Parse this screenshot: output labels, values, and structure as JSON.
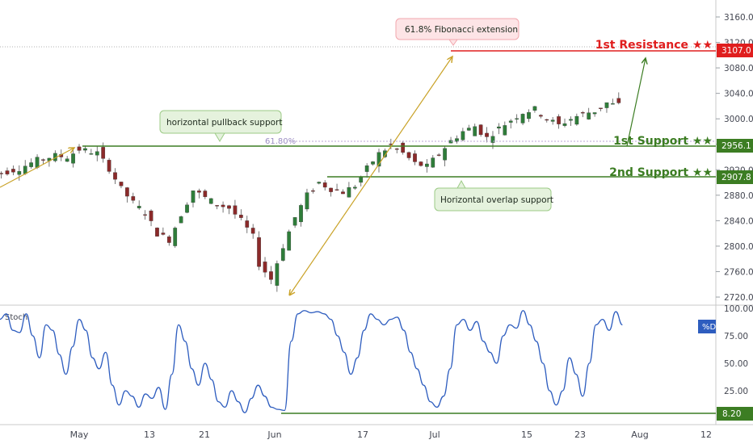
{
  "chart_data": [
    {
      "type": "candlestick",
      "price_axis": {
        "ticks": [
          "3160.0",
          "3120.0",
          "3080.0",
          "3040.0",
          "3000.0",
          "2960.0",
          "2920.0",
          "2880.0",
          "2840.0",
          "2800.0",
          "2760.0",
          "2720.0"
        ],
        "range": [
          2710,
          3190
        ]
      },
      "date_axis": {
        "ticks": [
          "May",
          "13",
          "21",
          "Jun",
          "17",
          "Jul",
          "15",
          "23",
          "Aug",
          "12"
        ]
      },
      "levels": [
        {
          "label": "1st Resistance ★★",
          "price": 3107.0,
          "tag": "3107.0",
          "color": "#e01e1e"
        },
        {
          "label": "1st Support ★★",
          "price": 2956.1,
          "tag": "2956.1",
          "color": "#3c7d23"
        },
        {
          "label": "2nd Support ★★",
          "price": 2907.8,
          "tag": "2907.8",
          "color": "#3c7d23"
        }
      ],
      "callouts": [
        {
          "text": "61.8% Fibonacci extension"
        },
        {
          "text": "horizontal pullback support"
        },
        {
          "text": "Horizontal overlap support"
        }
      ],
      "fib_label": "61.80%",
      "series": [
        {
          "name": "price",
          "points": [
            [
              -15,
              2908
            ],
            [
              -12,
              2915
            ],
            [
              -9,
              2922
            ],
            [
              -6,
              2935
            ],
            [
              -3,
              2942
            ],
            [
              -1,
              2940
            ],
            [
              1,
              2952
            ],
            [
              4,
              2946
            ],
            [
              6,
              2922
            ],
            [
              8,
              2890
            ],
            [
              10,
              2868
            ],
            [
              12,
              2852
            ],
            [
              14,
              2820
            ],
            [
              16,
              2810
            ],
            [
              18,
              2850
            ],
            [
              20,
              2888
            ],
            [
              22,
              2876
            ],
            [
              24,
              2866
            ],
            [
              26,
              2860
            ],
            [
              28,
              2840
            ],
            [
              30,
              2815
            ],
            [
              31,
              2772
            ],
            [
              33,
              2748
            ],
            [
              35,
              2800
            ],
            [
              37,
              2845
            ],
            [
              39,
              2880
            ],
            [
              41,
              2900
            ],
            [
              43,
              2890
            ],
            [
              45,
              2885
            ],
            [
              47,
              2895
            ],
            [
              49,
              2922
            ],
            [
              51,
              2945
            ],
            [
              53,
              2958
            ],
            [
              55,
              2946
            ],
            [
              57,
              2930
            ],
            [
              59,
              2925
            ],
            [
              61,
              2945
            ],
            [
              63,
              2965
            ],
            [
              65,
              2980
            ],
            [
              67,
              2988
            ],
            [
              69,
              2970
            ],
            [
              71,
              2985
            ],
            [
              73,
              2998
            ],
            [
              75,
              3010
            ],
            [
              77,
              3015
            ],
            [
              79,
              3000
            ],
            [
              81,
              2990
            ],
            [
              83,
              3000
            ],
            [
              85,
              3008
            ],
            [
              87,
              3012
            ],
            [
              89,
              3025
            ],
            [
              90,
              3022
            ]
          ]
        }
      ]
    },
    {
      "type": "line",
      "name": "Stoch",
      "legend": "%D",
      "axis_ticks": [
        "100.00",
        "75.00",
        "50.00",
        "25.00"
      ],
      "ylim": [
        0,
        100
      ],
      "level_label": "8.20",
      "level": 8.2,
      "series": [
        {
          "name": "%D",
          "values": [
            [
              -16,
              75
            ],
            [
              -15,
              55
            ],
            [
              -14,
              62
            ],
            [
              -13,
              55
            ],
            [
              -12,
              90
            ],
            [
              -11,
              95
            ],
            [
              -10,
              80
            ],
            [
              -9,
              78
            ],
            [
              -8,
              95
            ],
            [
              -7,
              75
            ],
            [
              -6,
              55
            ],
            [
              -5,
              85
            ],
            [
              -4,
              80
            ],
            [
              -3,
              58
            ],
            [
              -2,
              40
            ],
            [
              -1,
              65
            ],
            [
              0,
              90
            ],
            [
              1,
              80
            ],
            [
              2,
              55
            ],
            [
              3,
              45
            ],
            [
              4,
              60
            ],
            [
              5,
              30
            ],
            [
              6,
              12
            ],
            [
              7,
              25
            ],
            [
              8,
              20
            ],
            [
              9,
              10
            ],
            [
              10,
              22
            ],
            [
              11,
              18
            ],
            [
              12,
              28
            ],
            [
              13,
              8
            ],
            [
              14,
              40
            ],
            [
              15,
              85
            ],
            [
              16,
              70
            ],
            [
              17,
              45
            ],
            [
              18,
              30
            ],
            [
              19,
              50
            ],
            [
              20,
              35
            ],
            [
              21,
              15
            ],
            [
              22,
              10
            ],
            [
              23,
              25
            ],
            [
              24,
              15
            ],
            [
              25,
              5
            ],
            [
              26,
              18
            ],
            [
              27,
              30
            ],
            [
              28,
              20
            ],
            [
              29,
              10
            ],
            [
              30,
              8
            ],
            [
              31,
              7
            ],
            [
              32,
              70
            ],
            [
              33,
              95
            ],
            [
              34,
              98
            ],
            [
              35,
              96
            ],
            [
              36,
              97
            ],
            [
              37,
              95
            ],
            [
              38,
              90
            ],
            [
              39,
              75
            ],
            [
              40,
              60
            ],
            [
              41,
              40
            ],
            [
              42,
              55
            ],
            [
              43,
              80
            ],
            [
              44,
              95
            ],
            [
              45,
              90
            ],
            [
              46,
              85
            ],
            [
              47,
              90
            ],
            [
              48,
              92
            ],
            [
              49,
              80
            ],
            [
              50,
              60
            ],
            [
              51,
              45
            ],
            [
              52,
              30
            ],
            [
              53,
              15
            ],
            [
              54,
              10
            ],
            [
              55,
              20
            ],
            [
              56,
              45
            ],
            [
              57,
              85
            ],
            [
              58,
              90
            ],
            [
              59,
              80
            ],
            [
              60,
              88
            ],
            [
              61,
              70
            ],
            [
              62,
              60
            ],
            [
              63,
              50
            ],
            [
              64,
              75
            ],
            [
              65,
              85
            ],
            [
              66,
              82
            ],
            [
              67,
              98
            ],
            [
              68,
              85
            ],
            [
              69,
              70
            ],
            [
              70,
              50
            ],
            [
              71,
              25
            ],
            [
              72,
              12
            ],
            [
              73,
              25
            ],
            [
              74,
              55
            ],
            [
              75,
              40
            ],
            [
              76,
              20
            ],
            [
              77,
              50
            ],
            [
              78,
              85
            ],
            [
              79,
              90
            ],
            [
              80,
              80
            ],
            [
              81,
              97
            ],
            [
              82,
              85
            ]
          ]
        }
      ]
    }
  ]
}
